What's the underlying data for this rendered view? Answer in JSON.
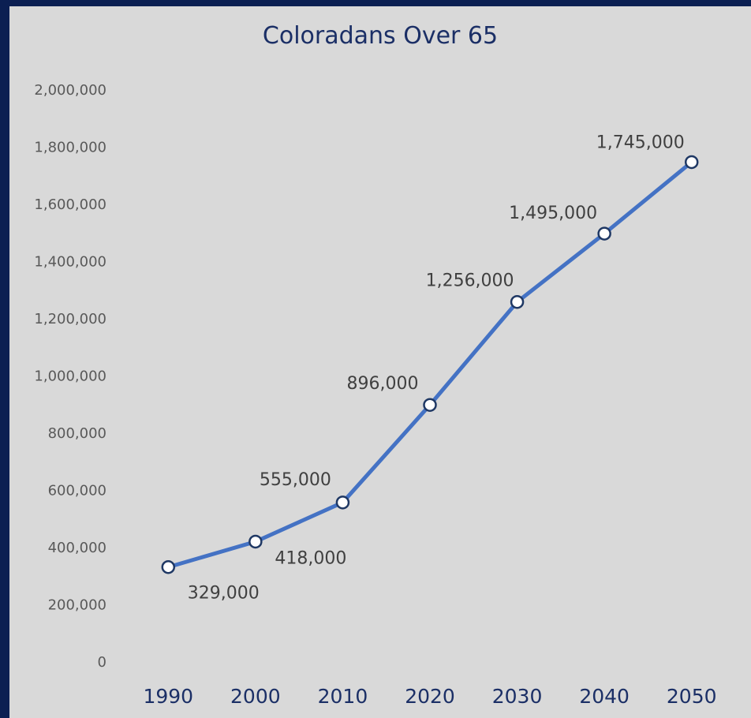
{
  "chart_data": {
    "type": "line",
    "title": "Coloradans Over 65",
    "xlabel": "",
    "ylabel": "",
    "categories": [
      "1990",
      "2000",
      "2010",
      "2020",
      "2030",
      "2040",
      "2050"
    ],
    "series": [
      {
        "values": [
          329000,
          418000,
          555000,
          896000,
          1256000,
          1495000,
          1745000
        ]
      }
    ],
    "data_labels": [
      "329,000",
      "418,000",
      "555,000",
      "896,000",
      "1,256,000",
      "1,495,000",
      "1,745,000"
    ],
    "ylim": [
      0,
      2000000
    ],
    "yticks": [
      0,
      200000,
      400000,
      600000,
      800000,
      1000000,
      1200000,
      1400000,
      1600000,
      1800000,
      2000000
    ],
    "ytick_labels": [
      "0",
      "200,000",
      "400,000",
      "600,000",
      "800,000",
      "1,000,000",
      "1,200,000",
      "1,400,000",
      "1,600,000",
      "1,800,000",
      "2,000,000"
    ],
    "grid": false,
    "legend": "none",
    "colors": {
      "line": "#4472c4",
      "marker_fill": "#ffffff",
      "marker_stroke": "#1f3864",
      "background": "#d9d9d9",
      "frame": "#0b1f52"
    }
  }
}
